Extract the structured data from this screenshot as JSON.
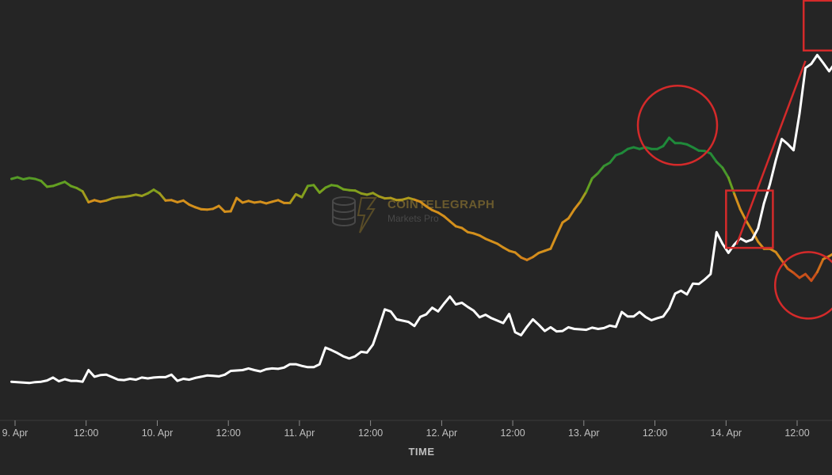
{
  "chart_data": {
    "type": "line",
    "xlabel": "TIME",
    "ylabel": "",
    "x_ticks": [
      "9. Apr",
      "12:00",
      "10. Apr",
      "12:00",
      "11. Apr",
      "12:00",
      "12. Apr",
      "12:00",
      "13. Apr",
      "12:00",
      "14. Apr",
      "12:00"
    ],
    "x_tick_hours": [
      0,
      12,
      24,
      36,
      48,
      60,
      72,
      84,
      96,
      108,
      120,
      132
    ],
    "xlim_hours": [
      -0.6,
      140
    ],
    "ylim": [
      0,
      100
    ],
    "grid": false,
    "legend": "none",
    "series": [
      {
        "name": "",
        "color": "gradient: #6aa21f (high) → #d4901c (mid) → #c9501a (low)",
        "points": [
          [
            -0.6,
            58.1
          ],
          [
            0.4,
            58.5
          ],
          [
            1.4,
            58.0
          ],
          [
            2.4,
            58.3
          ],
          [
            3.4,
            58.1
          ],
          [
            4.4,
            57.6
          ],
          [
            5.4,
            56.2
          ],
          [
            6.4,
            56.4
          ],
          [
            7.4,
            56.9
          ],
          [
            8.4,
            57.4
          ],
          [
            9.4,
            56.4
          ],
          [
            10.4,
            55.9
          ],
          [
            11.4,
            55.1
          ],
          [
            12.4,
            52.5
          ],
          [
            13.4,
            53.0
          ],
          [
            14.4,
            52.6
          ],
          [
            15.4,
            52.9
          ],
          [
            16.4,
            53.4
          ],
          [
            17.4,
            53.7
          ],
          [
            18.4,
            53.8
          ],
          [
            19.4,
            54.0
          ],
          [
            20.4,
            54.3
          ],
          [
            21.4,
            54.0
          ],
          [
            22.4,
            54.6
          ],
          [
            23.4,
            55.5
          ],
          [
            24.4,
            54.6
          ],
          [
            25.4,
            52.9
          ],
          [
            26.4,
            53.0
          ],
          [
            27.4,
            52.5
          ],
          [
            28.4,
            52.9
          ],
          [
            29.4,
            51.9
          ],
          [
            30.4,
            51.3
          ],
          [
            31.4,
            50.8
          ],
          [
            32.4,
            50.7
          ],
          [
            33.4,
            50.9
          ],
          [
            34.4,
            51.6
          ],
          [
            35.4,
            50.2
          ],
          [
            36.4,
            50.3
          ],
          [
            37.4,
            53.5
          ],
          [
            38.4,
            52.4
          ],
          [
            39.4,
            52.8
          ],
          [
            40.4,
            52.4
          ],
          [
            41.4,
            52.6
          ],
          [
            42.4,
            52.2
          ],
          [
            43.4,
            52.6
          ],
          [
            44.4,
            53.0
          ],
          [
            45.4,
            52.3
          ],
          [
            46.4,
            52.3
          ],
          [
            47.4,
            54.4
          ],
          [
            48.4,
            53.7
          ],
          [
            49.4,
            56.4
          ],
          [
            50.4,
            56.6
          ],
          [
            51.4,
            54.8
          ],
          [
            52.4,
            56.0
          ],
          [
            53.4,
            56.6
          ],
          [
            54.4,
            56.4
          ],
          [
            55.4,
            55.6
          ],
          [
            56.4,
            55.4
          ],
          [
            57.4,
            55.3
          ],
          [
            58.4,
            54.6
          ],
          [
            59.4,
            54.3
          ],
          [
            60.4,
            54.7
          ],
          [
            61.4,
            53.9
          ],
          [
            62.4,
            53.4
          ],
          [
            63.4,
            53.5
          ],
          [
            64.4,
            53.0
          ],
          [
            65.4,
            53.1
          ],
          [
            66.4,
            53.5
          ],
          [
            67.4,
            53.1
          ],
          [
            68.4,
            52.6
          ],
          [
            69.4,
            51.5
          ],
          [
            70.4,
            50.6
          ],
          [
            71.4,
            50.0
          ],
          [
            72.4,
            49.1
          ],
          [
            73.4,
            47.9
          ],
          [
            74.4,
            46.7
          ],
          [
            75.4,
            46.3
          ],
          [
            76.4,
            45.3
          ],
          [
            77.4,
            45.0
          ],
          [
            78.4,
            44.5
          ],
          [
            79.4,
            43.7
          ],
          [
            80.4,
            43.1
          ],
          [
            81.4,
            42.5
          ],
          [
            82.4,
            41.6
          ],
          [
            83.4,
            40.8
          ],
          [
            84.4,
            40.4
          ],
          [
            85.4,
            39.2
          ],
          [
            86.4,
            38.6
          ],
          [
            87.4,
            39.3
          ],
          [
            88.4,
            40.3
          ],
          [
            89.4,
            40.8
          ],
          [
            90.4,
            41.3
          ],
          [
            91.4,
            44.5
          ],
          [
            92.4,
            47.6
          ],
          [
            93.4,
            48.6
          ],
          [
            94.4,
            50.8
          ],
          [
            95.4,
            52.6
          ],
          [
            96.4,
            55.0
          ],
          [
            97.4,
            58.2
          ],
          [
            98.4,
            59.5
          ],
          [
            99.4,
            61.2
          ],
          [
            100.4,
            62.0
          ],
          [
            101.4,
            63.8
          ],
          [
            102.4,
            64.3
          ],
          [
            103.4,
            65.3
          ],
          [
            104.4,
            65.7
          ],
          [
            105.4,
            65.3
          ],
          [
            106.4,
            65.7
          ],
          [
            107.4,
            65.3
          ],
          [
            108.4,
            65.3
          ],
          [
            109.4,
            66.0
          ],
          [
            110.4,
            68.0
          ],
          [
            111.4,
            66.7
          ],
          [
            112.4,
            66.7
          ],
          [
            113.4,
            66.4
          ],
          [
            114.4,
            65.7
          ],
          [
            115.4,
            64.9
          ],
          [
            116.4,
            64.8
          ],
          [
            117.4,
            64.2
          ],
          [
            118.4,
            62.2
          ],
          [
            119.4,
            60.8
          ],
          [
            120.4,
            58.4
          ],
          [
            121.4,
            54.5
          ],
          [
            122.4,
            50.8
          ],
          [
            123.4,
            48.0
          ],
          [
            124.4,
            45.6
          ],
          [
            125.4,
            43.0
          ],
          [
            126.4,
            41.3
          ],
          [
            127.4,
            41.3
          ],
          [
            128.4,
            40.5
          ],
          [
            129.4,
            38.5
          ],
          [
            130.4,
            36.5
          ],
          [
            131.4,
            35.5
          ],
          [
            132.4,
            34.3
          ],
          [
            133.4,
            35.2
          ],
          [
            134.4,
            33.6
          ],
          [
            135.4,
            35.7
          ],
          [
            136.4,
            38.8
          ],
          [
            137.4,
            39.5
          ],
          [
            138.4,
            40.4
          ],
          [
            139.4,
            40.5
          ],
          [
            140.0,
            39.8
          ]
        ]
      },
      {
        "name": "",
        "color": "#ffffff",
        "points": [
          [
            -0.6,
            9.3
          ],
          [
            0.4,
            9.2
          ],
          [
            1.4,
            9.1
          ],
          [
            2.4,
            9.0
          ],
          [
            3.4,
            9.2
          ],
          [
            4.4,
            9.3
          ],
          [
            5.4,
            9.6
          ],
          [
            6.4,
            10.3
          ],
          [
            7.4,
            9.4
          ],
          [
            8.4,
            9.9
          ],
          [
            9.4,
            9.5
          ],
          [
            10.4,
            9.5
          ],
          [
            11.4,
            9.3
          ],
          [
            12.4,
            12.1
          ],
          [
            13.4,
            10.5
          ],
          [
            14.4,
            10.9
          ],
          [
            15.4,
            11.0
          ],
          [
            16.4,
            10.4
          ],
          [
            17.4,
            9.8
          ],
          [
            18.4,
            9.7
          ],
          [
            19.4,
            10.0
          ],
          [
            20.4,
            9.8
          ],
          [
            21.4,
            10.3
          ],
          [
            22.4,
            10.1
          ],
          [
            23.4,
            10.3
          ],
          [
            24.4,
            10.4
          ],
          [
            25.4,
            10.4
          ],
          [
            26.4,
            11.0
          ],
          [
            27.4,
            9.5
          ],
          [
            28.4,
            10.0
          ],
          [
            29.4,
            9.8
          ],
          [
            30.4,
            10.2
          ],
          [
            31.4,
            10.5
          ],
          [
            32.4,
            10.8
          ],
          [
            33.4,
            10.7
          ],
          [
            34.4,
            10.6
          ],
          [
            35.4,
            11.0
          ],
          [
            36.4,
            11.9
          ],
          [
            37.4,
            12.0
          ],
          [
            38.4,
            12.1
          ],
          [
            39.4,
            12.5
          ],
          [
            40.4,
            12.1
          ],
          [
            41.4,
            11.8
          ],
          [
            42.4,
            12.3
          ],
          [
            43.4,
            12.5
          ],
          [
            44.4,
            12.4
          ],
          [
            45.4,
            12.7
          ],
          [
            46.4,
            13.5
          ],
          [
            47.4,
            13.5
          ],
          [
            48.4,
            13.1
          ],
          [
            49.4,
            12.8
          ],
          [
            50.4,
            12.8
          ],
          [
            51.4,
            13.5
          ],
          [
            52.4,
            17.5
          ],
          [
            53.4,
            16.9
          ],
          [
            54.4,
            16.2
          ],
          [
            55.4,
            15.4
          ],
          [
            56.4,
            14.9
          ],
          [
            57.4,
            15.4
          ],
          [
            58.4,
            16.5
          ],
          [
            59.4,
            16.3
          ],
          [
            60.4,
            18.2
          ],
          [
            61.4,
            22.3
          ],
          [
            62.4,
            26.7
          ],
          [
            63.4,
            26.2
          ],
          [
            64.4,
            24.3
          ],
          [
            65.4,
            24.0
          ],
          [
            66.4,
            23.7
          ],
          [
            67.4,
            22.7
          ],
          [
            68.4,
            24.9
          ],
          [
            69.4,
            25.5
          ],
          [
            70.4,
            27.1
          ],
          [
            71.4,
            26.2
          ],
          [
            72.4,
            28.1
          ],
          [
            73.4,
            29.8
          ],
          [
            74.4,
            27.9
          ],
          [
            75.4,
            28.3
          ],
          [
            76.4,
            27.3
          ],
          [
            77.4,
            26.4
          ],
          [
            78.4,
            24.8
          ],
          [
            79.4,
            25.4
          ],
          [
            80.4,
            24.6
          ],
          [
            81.4,
            24.0
          ],
          [
            82.4,
            23.4
          ],
          [
            83.4,
            25.6
          ],
          [
            84.4,
            21.2
          ],
          [
            85.4,
            20.5
          ],
          [
            86.4,
            22.5
          ],
          [
            87.4,
            24.3
          ],
          [
            88.4,
            23.0
          ],
          [
            89.4,
            21.5
          ],
          [
            90.4,
            22.4
          ],
          [
            91.4,
            21.4
          ],
          [
            92.4,
            21.5
          ],
          [
            93.4,
            22.4
          ],
          [
            94.4,
            22.0
          ],
          [
            95.4,
            21.9
          ],
          [
            96.4,
            21.8
          ],
          [
            97.4,
            22.3
          ],
          [
            98.4,
            22.0
          ],
          [
            99.4,
            22.2
          ],
          [
            100.4,
            22.8
          ],
          [
            101.4,
            22.5
          ],
          [
            102.4,
            26.1
          ],
          [
            103.4,
            25.0
          ],
          [
            104.4,
            25.0
          ],
          [
            105.4,
            26.1
          ],
          [
            106.4,
            24.9
          ],
          [
            107.4,
            24.1
          ],
          [
            108.4,
            24.6
          ],
          [
            109.4,
            25.0
          ],
          [
            110.4,
            27.0
          ],
          [
            111.4,
            30.5
          ],
          [
            112.4,
            31.2
          ],
          [
            113.4,
            30.3
          ],
          [
            114.4,
            32.9
          ],
          [
            115.4,
            32.8
          ],
          [
            116.4,
            33.9
          ],
          [
            117.4,
            35.2
          ],
          [
            118.4,
            45.3
          ],
          [
            119.4,
            42.5
          ],
          [
            120.4,
            40.3
          ],
          [
            121.4,
            42.3
          ],
          [
            122.4,
            43.8
          ],
          [
            123.4,
            43.0
          ],
          [
            124.4,
            43.5
          ],
          [
            125.4,
            46.2
          ],
          [
            126.4,
            52.2
          ],
          [
            127.4,
            56.8
          ],
          [
            128.4,
            62.6
          ],
          [
            129.4,
            67.7
          ],
          [
            130.4,
            66.5
          ],
          [
            131.4,
            65.0
          ],
          [
            132.4,
            73.8
          ],
          [
            133.4,
            84.8
          ],
          [
            134.4,
            85.8
          ],
          [
            135.4,
            87.9
          ],
          [
            136.4,
            86.0
          ],
          [
            137.4,
            84.0
          ],
          [
            138.4,
            86.0
          ],
          [
            139.4,
            96.9
          ],
          [
            140.0,
            90.0
          ]
        ]
      }
    ],
    "annotations": [
      {
        "shape": "circle",
        "color": "#d42a2a",
        "center_hours": 111.8,
        "center_y": 71.0
      },
      {
        "shape": "circle",
        "color": "#d42a2a",
        "center_hours": 133.9,
        "center_y": 32.5
      },
      {
        "shape": "rectangle",
        "color": "#d42a2a",
        "hours": [
          120.0,
          127.9
        ],
        "y": [
          41.5,
          55.3
        ]
      },
      {
        "shape": "rectangle",
        "color": "#d42a2a",
        "hours": [
          133.1,
          142.0
        ],
        "y": [
          89.0,
          101.0
        ]
      },
      {
        "shape": "trend-line",
        "color": "#d42a2a",
        "from": [
          121.8,
          42.3
        ],
        "to": [
          133.4,
          86.5
        ]
      },
      {
        "shape": "trend-line",
        "color": "#d42a2a",
        "from": [
          139.5,
          88.2
        ],
        "to": [
          142.0,
          86.0
        ]
      }
    ],
    "watermark": {
      "title": "COINTELEGRAPH",
      "subtitle": "Markets Pro"
    }
  }
}
